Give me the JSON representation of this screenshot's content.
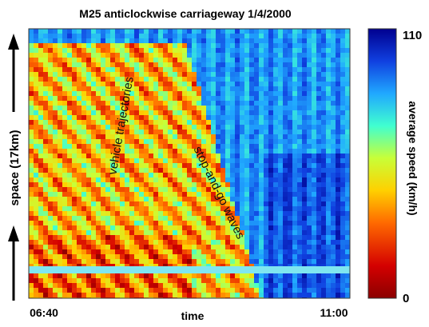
{
  "chart_data": {
    "type": "heatmap",
    "title": "M25 anticlockwise carriageway 1/4/2000",
    "xlabel": "time",
    "ylabel": "space (17km)",
    "x_tick_labels": [
      "06:40",
      "11:00"
    ],
    "xlim": [
      "06:40",
      "11:00"
    ],
    "colorbar": {
      "label": "average speed (km/h)",
      "min": 0,
      "max": 110,
      "tick_labels": [
        "110",
        "0"
      ],
      "colormap": "jet"
    },
    "annotations": [
      "vehicle trajectories",
      "stop-and-go waves"
    ]
  },
  "colors": {
    "low_speed": "#8b0000",
    "high_speed": "#00008f",
    "axis_arrow": "#000000"
  }
}
